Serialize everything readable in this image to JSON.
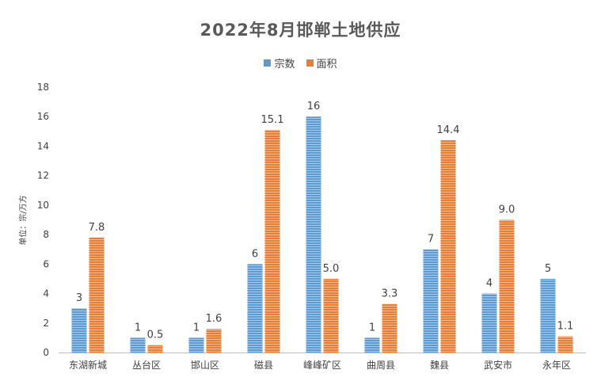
{
  "chart_data": {
    "type": "bar",
    "title": "2022年8月邯郸土地供应",
    "ylabel": "单位：宗/万方",
    "xlabel": "",
    "ylim": [
      0,
      18
    ],
    "yticks": [
      0,
      2,
      4,
      6,
      8,
      10,
      12,
      14,
      16,
      18
    ],
    "grid": false,
    "legend_position": "top",
    "categories": [
      "东湖新城",
      "丛台区",
      "邯山区",
      "磁县",
      "峰峰矿区",
      "曲周县",
      "魏县",
      "武安市",
      "永年区"
    ],
    "series": [
      {
        "name": "宗数",
        "color": "#5B9BD5",
        "values": [
          3,
          1,
          1,
          6,
          16,
          1,
          7,
          4,
          5
        ],
        "labels": [
          "3",
          "1",
          "1",
          "6",
          "16",
          "1",
          "7",
          "4",
          "5"
        ]
      },
      {
        "name": "面积",
        "color": "#ED7D31",
        "values": [
          7.8,
          0.5,
          1.6,
          15.1,
          5.0,
          3.3,
          14.4,
          9.0,
          1.1
        ],
        "labels": [
          "7.8",
          "0.5",
          "1.6",
          "15.1",
          "5.0",
          "3.3",
          "14.4",
          "9.0",
          "1.1"
        ]
      }
    ]
  }
}
